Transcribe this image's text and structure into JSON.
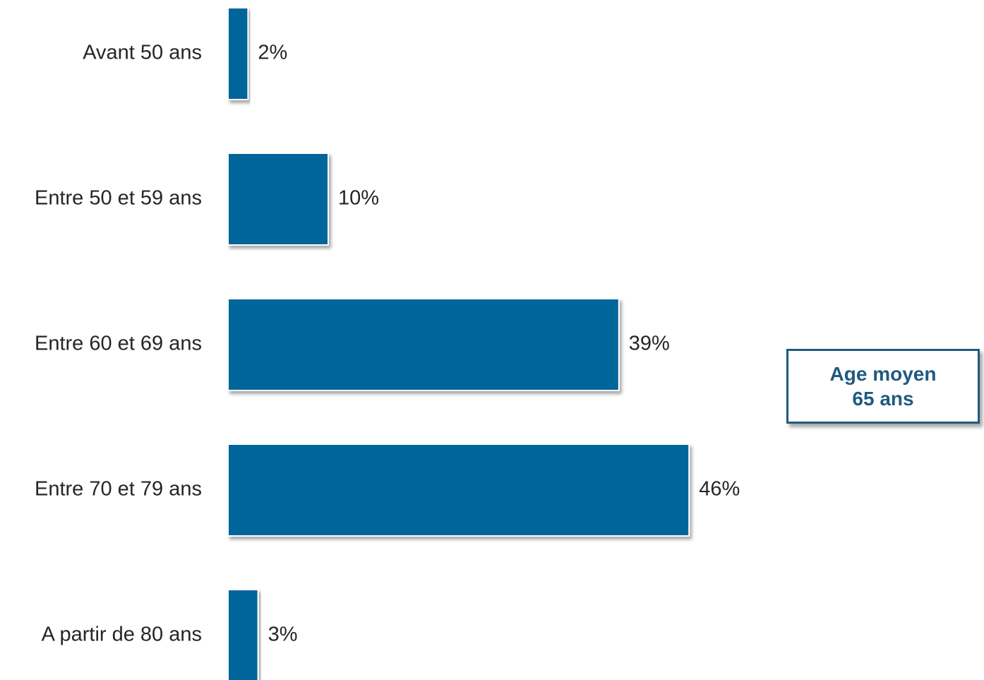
{
  "chart_data": {
    "type": "bar",
    "orientation": "horizontal",
    "categories": [
      "Avant 50 ans",
      "Entre 50 et 59 ans",
      "Entre 60 et 69 ans",
      "Entre 70 et 79 ans",
      "A partir de 80 ans"
    ],
    "values": [
      2,
      10,
      39,
      46,
      3
    ],
    "value_labels": [
      "2%",
      "10%",
      "39%",
      "46%",
      "3%"
    ],
    "unit": "%",
    "bar_color": "#00659a",
    "grid": false,
    "legend": "none"
  },
  "info_box": {
    "line1": "Age moyen",
    "line2": "65 ans",
    "color": "#1f5a80"
  }
}
